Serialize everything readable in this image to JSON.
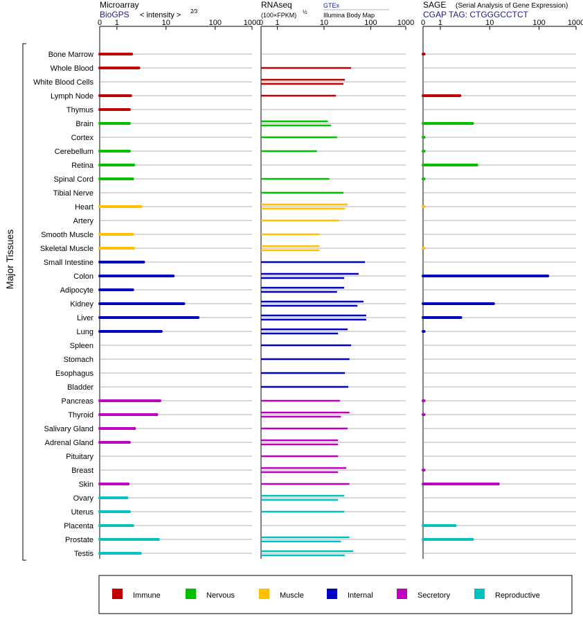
{
  "panels": [
    {
      "title": "Microarray",
      "subtitle": "BioGPS",
      "subtitle_color": "#1a1a8c",
      "note": "< intensity >",
      "note_exponent": "2⁄3",
      "ticks": [
        "0",
        "1",
        "10",
        "100",
        "1000"
      ]
    },
    {
      "title": "RNAseq",
      "unit": "(100×FPKM)",
      "unit_exponent": "½",
      "source": "GTEx",
      "source_color": "#1a1a8c",
      "source_note": "Illumina Body Map",
      "ticks": [
        "0",
        "1",
        "10",
        "100",
        "1000"
      ]
    },
    {
      "title": "SAGE",
      "note": "(Serial Analysis of Gene Expression)",
      "subtitle": "CGAP TAG: CTGGGCCTCT",
      "subtitle_color": "#1a1a8c",
      "ticks": [
        "0",
        "1",
        "10",
        "100",
        "1000"
      ]
    }
  ],
  "y_group_label": "Major Tissues",
  "legend": [
    {
      "label": "Immune",
      "color": "#c00000"
    },
    {
      "label": "Nervous",
      "color": "#00c000"
    },
    {
      "label": "Muscle",
      "color": "#ffc000"
    },
    {
      "label": "Internal",
      "color": "#0000c0"
    },
    {
      "label": "Secretory",
      "color": "#c000c0"
    },
    {
      "label": "Reproductive",
      "color": "#00c0c0"
    }
  ],
  "chart_data": {
    "type": "bar",
    "orientation": "horizontal",
    "x_scale": "log",
    "xlim": [
      0,
      1000
    ],
    "categories": [
      "Bone Marrow",
      "Whole Blood",
      "White Blood Cells",
      "Lymph Node",
      "Thymus",
      "Brain",
      "Cortex",
      "Cerebellum",
      "Retina",
      "Spinal Cord",
      "Tibial Nerve",
      "Heart",
      "Artery",
      "Smooth Muscle",
      "Skeletal Muscle",
      "Small Intestine",
      "Colon",
      "Adipocyte",
      "Kidney",
      "Liver",
      "Lung",
      "Spleen",
      "Stomach",
      "Esophagus",
      "Bladder",
      "Pancreas",
      "Thyroid",
      "Salivary Gland",
      "Adrenal Gland",
      "Pituitary",
      "Breast",
      "Skin",
      "Ovary",
      "Uterus",
      "Placenta",
      "Prostate",
      "Testis"
    ],
    "category_system": [
      "Immune",
      "Immune",
      "Immune",
      "Immune",
      "Immune",
      "Nervous",
      "Nervous",
      "Nervous",
      "Nervous",
      "Nervous",
      "Nervous",
      "Muscle",
      "Muscle",
      "Muscle",
      "Muscle",
      "Internal",
      "Internal",
      "Internal",
      "Internal",
      "Internal",
      "Internal",
      "Internal",
      "Internal",
      "Internal",
      "Internal",
      "Secretory",
      "Secretory",
      "Secretory",
      "Secretory",
      "Secretory",
      "Secretory",
      "Secretory",
      "Reproductive",
      "Reproductive",
      "Reproductive",
      "Reproductive",
      "Reproductive"
    ],
    "series": [
      {
        "name": "Microarray",
        "values": [
          2.0,
          2.8,
          null,
          1.9,
          1.8,
          1.8,
          null,
          1.8,
          2.2,
          2.1,
          null,
          3.1,
          null,
          2.1,
          2.2,
          3.5,
          14,
          2.1,
          23,
          45,
          8,
          null,
          null,
          null,
          null,
          7.5,
          6.5,
          2.3,
          1.8,
          null,
          null,
          1.7,
          1.6,
          1.8,
          2.1,
          7,
          3
        ]
      },
      {
        "name": "RNAseq GTEx",
        "values": [
          null,
          38,
          28,
          null,
          null,
          12,
          19,
          null,
          null,
          13,
          26,
          32,
          21,
          8,
          8,
          75,
          55,
          27,
          70,
          80,
          32,
          38,
          35,
          28,
          33,
          22,
          35,
          32,
          20,
          20,
          30,
          35,
          27,
          27,
          null,
          35,
          42
        ]
      },
      {
        "name": "RNAseq Illumina Body Map",
        "values": [
          null,
          null,
          26,
          18,
          null,
          14,
          null,
          7,
          null,
          null,
          null,
          28,
          null,
          null,
          8,
          null,
          27,
          19,
          52,
          80,
          20,
          null,
          null,
          null,
          null,
          null,
          23,
          null,
          20,
          null,
          20,
          null,
          20,
          null,
          null,
          23,
          28
        ]
      },
      {
        "name": "SAGE",
        "values": [
          0.05,
          null,
          null,
          2.5,
          null,
          4.5,
          0.02,
          0.02,
          5.5,
          0.02,
          null,
          0.01,
          null,
          null,
          0.01,
          null,
          150,
          null,
          12,
          2.6,
          0.05,
          null,
          null,
          null,
          null,
          0.05,
          0.05,
          null,
          null,
          null,
          0.05,
          15,
          null,
          null,
          2.0,
          4.5,
          null
        ]
      }
    ]
  }
}
